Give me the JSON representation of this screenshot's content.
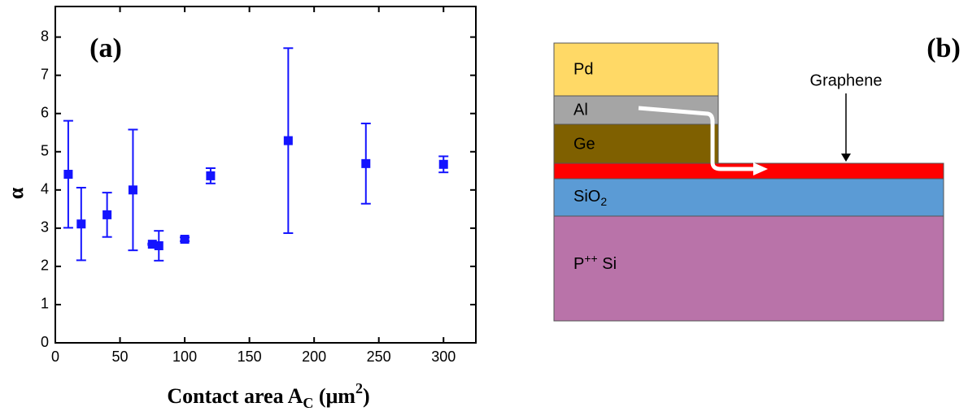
{
  "chart_data": {
    "type": "scatter",
    "label": "(a)",
    "y_label": "α",
    "x_label_parts": [
      "Contact area A",
      "C",
      " (μm",
      "2",
      ")"
    ],
    "xlim": [
      0,
      325
    ],
    "ylim": [
      0,
      8.8
    ],
    "xticks": [
      0,
      50,
      100,
      150,
      200,
      250,
      300
    ],
    "yticks": [
      0,
      1,
      2,
      3,
      4,
      5,
      6,
      7,
      8
    ],
    "series": [
      {
        "color": "#1414ff",
        "marker": "square",
        "x": [
          10,
          20,
          40,
          60,
          75,
          80,
          100,
          120,
          180,
          240,
          300
        ],
        "values": [
          4.41,
          3.11,
          3.35,
          4.0,
          2.58,
          2.54,
          2.71,
          4.37,
          5.29,
          4.69,
          4.67
        ],
        "errors": [
          1.4,
          0.95,
          0.58,
          1.58,
          0.02,
          0.39,
          0.05,
          0.2,
          2.42,
          1.05,
          0.21
        ]
      }
    ]
  },
  "diagram": {
    "label": "(b)",
    "layers": [
      {
        "label": "Pd",
        "color": "#ffd966"
      },
      {
        "label": "Al",
        "color": "#a5a5a5"
      },
      {
        "label": "Ge",
        "color": "#7f6000"
      },
      {
        "label": "SiO",
        "subscript": "2",
        "color": "#5b9bd5"
      },
      {
        "label": "P",
        "superscript": "++",
        "suffix": " Si",
        "color": "#b973a9"
      }
    ],
    "graphene": {
      "label": "Graphene",
      "color": "#ff0000"
    }
  }
}
